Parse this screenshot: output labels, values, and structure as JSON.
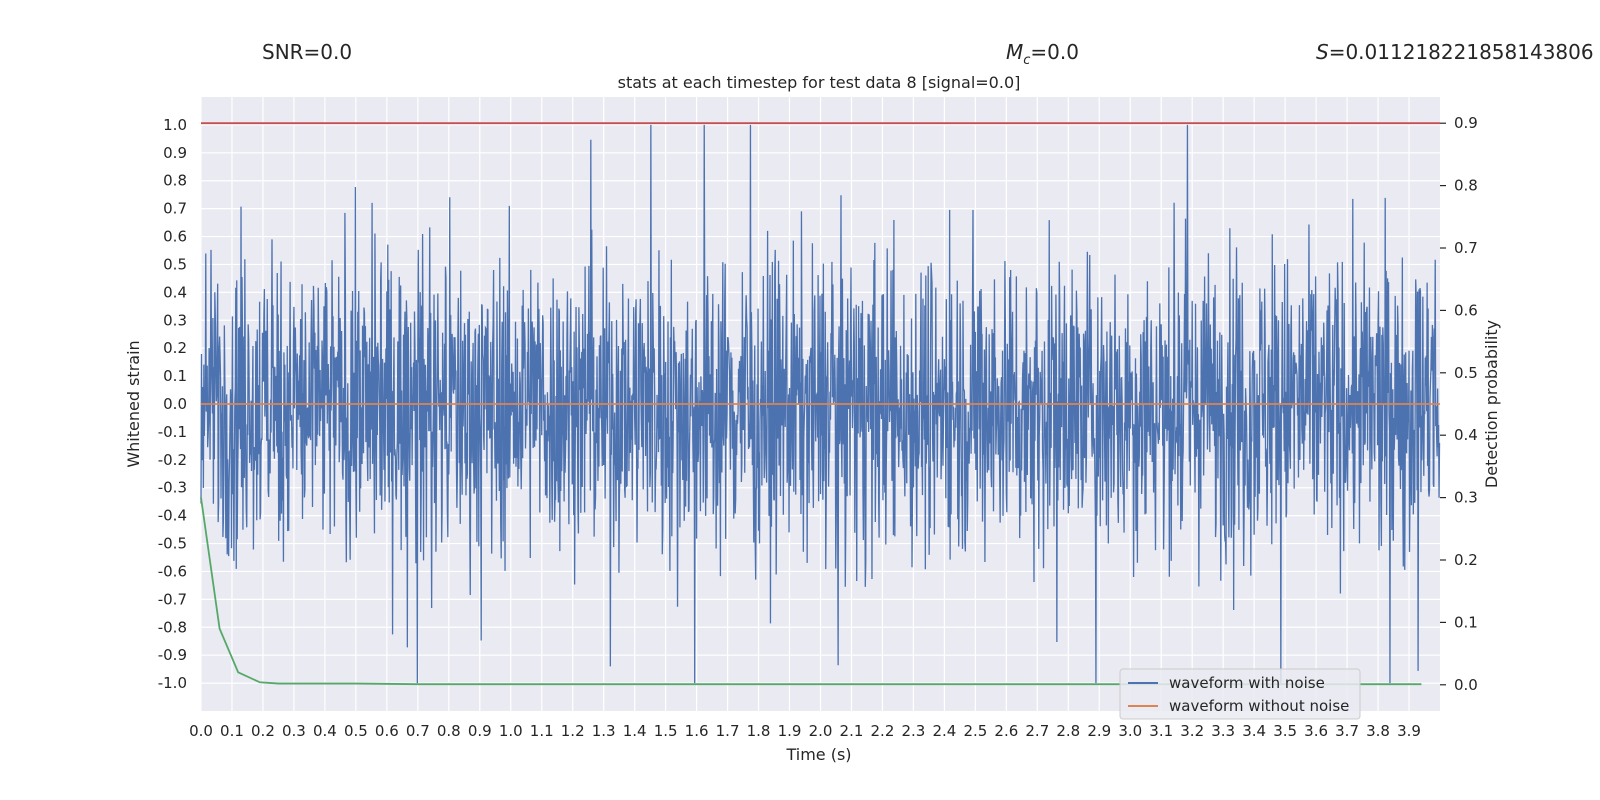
{
  "header": {
    "snr_text": "SNR=0.0",
    "mc_symbol": "M",
    "mc_subscript": "c",
    "mc_value": "=0.0",
    "s_symbol": "S",
    "s_value": "=0.011218221858143806"
  },
  "chart_data": {
    "type": "line",
    "title": "stats at each timestep for test data 8 [signal=0.0]",
    "xlabel": "Time (s)",
    "ylabel": "Whitened strain",
    "y2label": "Detection probability",
    "xlim": [
      0.0,
      4.0
    ],
    "ylim": [
      -1.1,
      1.1
    ],
    "y2lim": [
      -0.042,
      0.942
    ],
    "x_ticks": [
      "0.0",
      "0.1",
      "0.2",
      "0.3",
      "0.4",
      "0.5",
      "0.6",
      "0.7",
      "0.8",
      "0.9",
      "1.0",
      "1.1",
      "1.2",
      "1.3",
      "1.4",
      "1.5",
      "1.6",
      "1.7",
      "1.8",
      "1.9",
      "2.0",
      "2.1",
      "2.2",
      "2.3",
      "2.4",
      "2.5",
      "2.6",
      "2.7",
      "2.8",
      "2.9",
      "3.0",
      "3.1",
      "3.2",
      "3.3",
      "3.4",
      "3.5",
      "3.6",
      "3.7",
      "3.8",
      "3.9"
    ],
    "y_ticks": [
      "1.0",
      "0.9",
      "0.8",
      "0.7",
      "0.6",
      "0.5",
      "0.4",
      "0.3",
      "0.2",
      "0.1",
      "0.0",
      "-0.1",
      "-0.2",
      "-0.3",
      "-0.4",
      "-0.5",
      "-0.6",
      "-0.7",
      "-0.8",
      "-0.9",
      "-1.0"
    ],
    "y2_ticks": [
      "0.9",
      "0.8",
      "0.7",
      "0.6",
      "0.5",
      "0.4",
      "0.3",
      "0.2",
      "0.1",
      "0.0"
    ],
    "grid": true,
    "legend_position": "bottom-right",
    "series": [
      {
        "name": "waveform with noise",
        "color": "#4c72b0",
        "axis": "left",
        "description_values": "noise ranging approx -1.0 to 1.0 across 0-4 s"
      },
      {
        "name": "waveform without noise",
        "color": "#dd8452",
        "axis": "left",
        "x": [
          0.0,
          4.0
        ],
        "values": [
          0.0,
          0.0
        ]
      },
      {
        "name": "",
        "color": "#55a868",
        "axis": "right",
        "x": [
          0.0,
          0.06,
          0.12,
          0.19,
          0.25,
          0.35,
          0.5,
          0.7,
          1.0,
          2.0,
          3.0,
          3.94
        ],
        "values": [
          0.3,
          0.09,
          0.02,
          0.004,
          0.002,
          0.002,
          0.002,
          0.001,
          0.001,
          0.001,
          0.001,
          0.001
        ]
      },
      {
        "name": "",
        "color": "#c44e52",
        "axis": "right",
        "x": [
          0.0,
          4.0
        ],
        "values": [
          0.9,
          0.9
        ]
      }
    ]
  }
}
